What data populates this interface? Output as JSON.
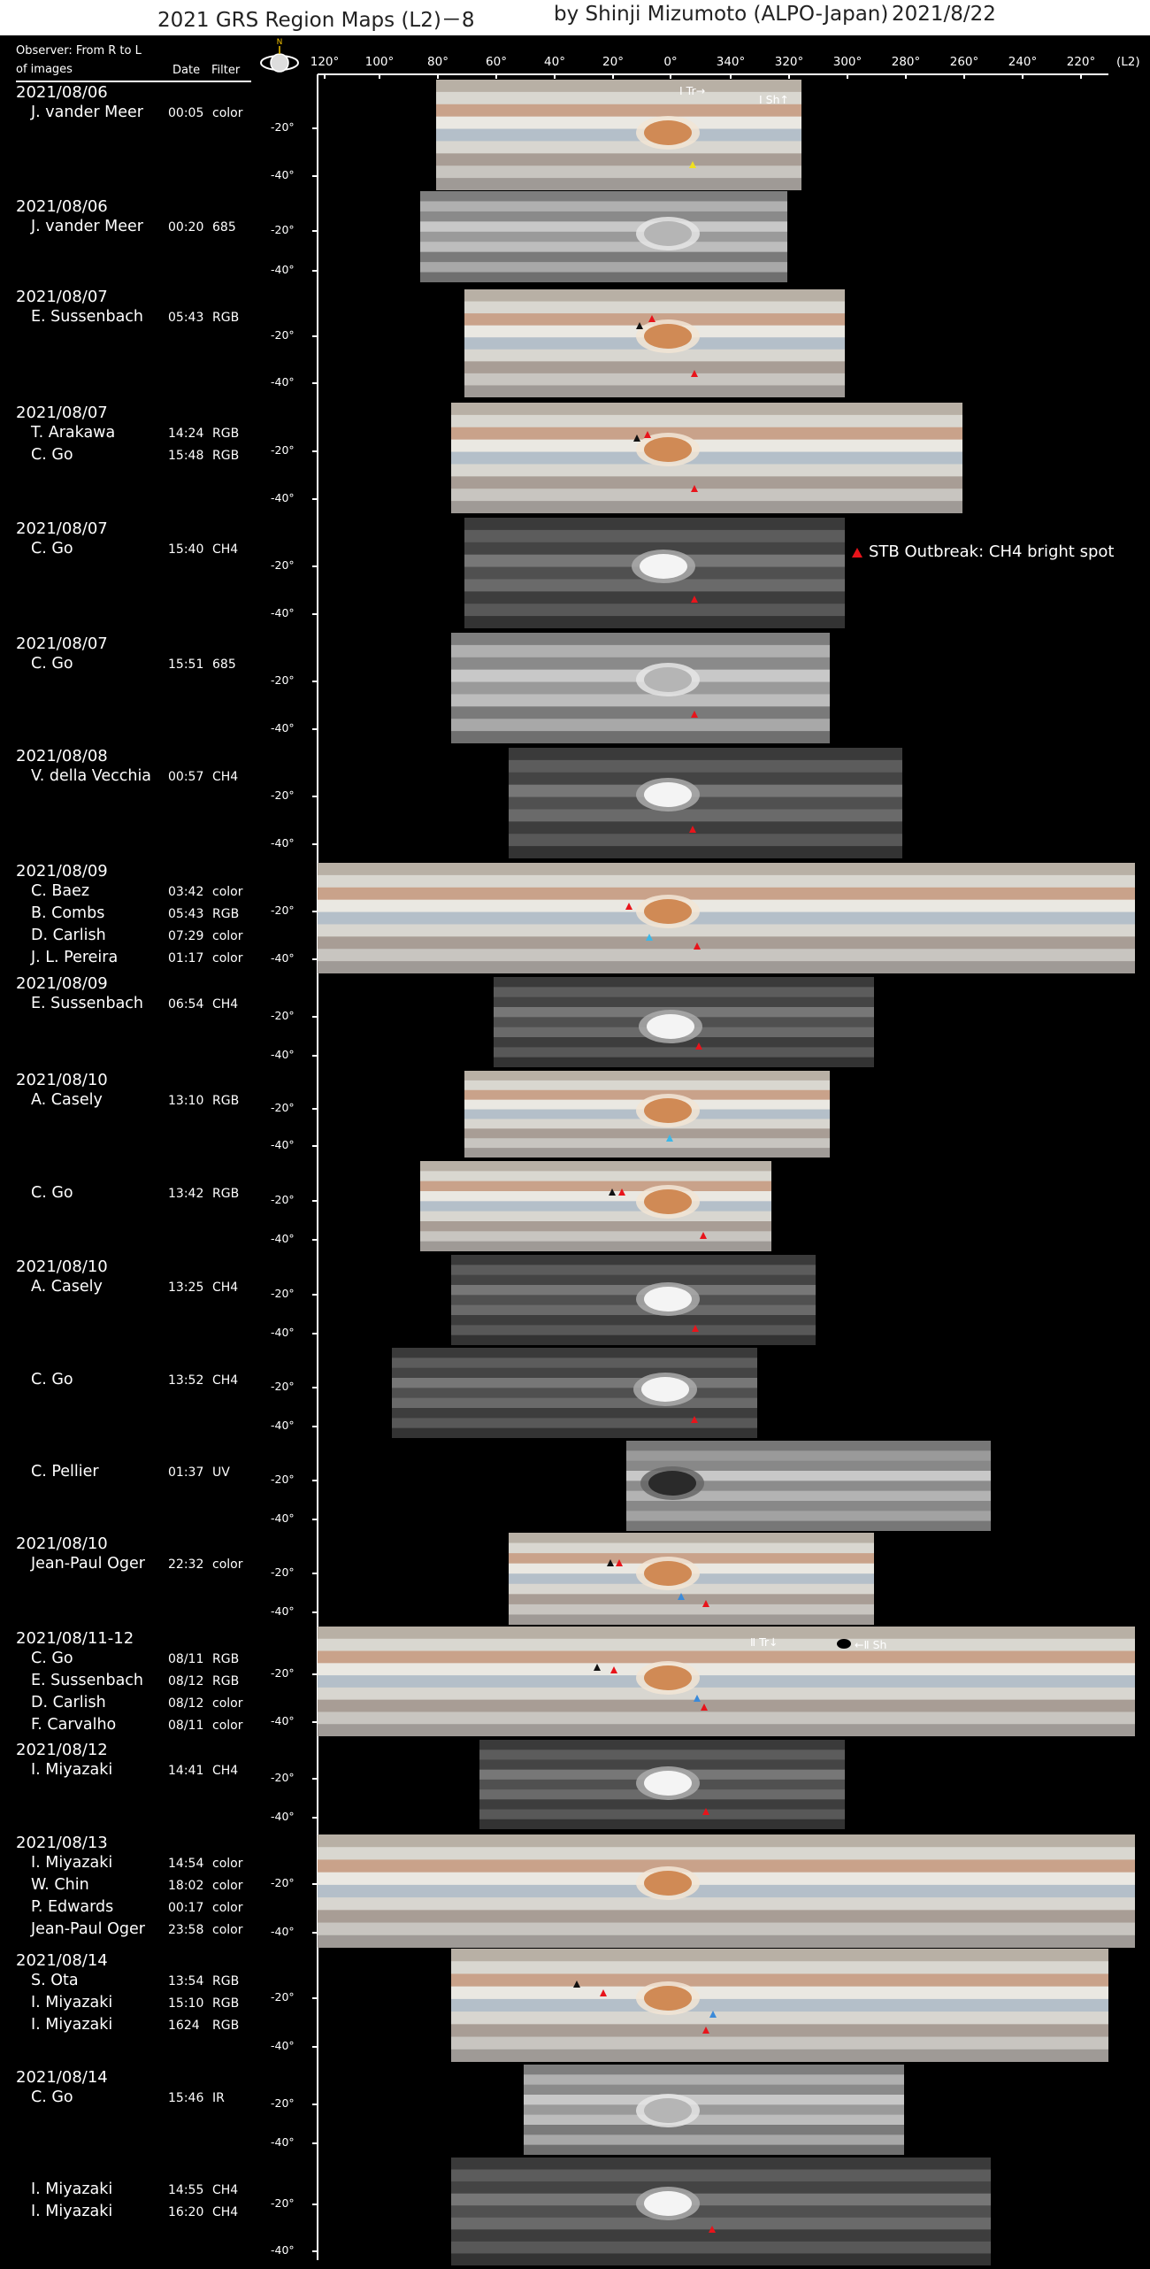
{
  "header": {
    "title": "2021 GRS Region Maps (L2)－8",
    "author": "by Shinji Mizumoto (ALPO-Japan)",
    "date": "2021/8/22"
  },
  "columns": {
    "observer_line1": "Observer: From R to L",
    "observer_line2": "of images",
    "date": "Date",
    "filter": "Filter"
  },
  "compass": {
    "north": "N"
  },
  "longitude_axis": {
    "labels": [
      "120°",
      "100°",
      "80°",
      "60°",
      "40°",
      "20°",
      "0°",
      "340°",
      "320°",
      "300°",
      "280°",
      "260°",
      "240°",
      "220°"
    ],
    "unit": "(L2)"
  },
  "latitude_labels": [
    "-20°",
    "-40°"
  ],
  "legend": {
    "marker_color": "#e8141b",
    "text": "STB Outbreak: CH4 bright spot"
  },
  "colors": {
    "red_marker": "#e8141b",
    "blue_marker": "#3b8ad9",
    "cyan_marker": "#3cb8e8",
    "yellow_marker": "#f0e020"
  },
  "panels": [
    {
      "date": "2021/08/06",
      "observers": [
        {
          "name": "J. vander Meer",
          "time": "00:05",
          "filter": "color"
        }
      ],
      "annotations": [
        "Ⅰ Tr→",
        "Ⅰ Sh↑"
      ]
    },
    {
      "date": "2021/08/06",
      "observers": [
        {
          "name": "J. vander Meer",
          "time": "00:20",
          "filter": "685"
        }
      ]
    },
    {
      "date": "2021/08/07",
      "observers": [
        {
          "name": "E. Sussenbach",
          "time": "05:43",
          "filter": "RGB"
        }
      ]
    },
    {
      "date": "2021/08/07",
      "observers": [
        {
          "name": "T. Arakawa",
          "time": "14:24",
          "filter": "RGB"
        },
        {
          "name": "C. Go",
          "time": "15:48",
          "filter": "RGB"
        }
      ]
    },
    {
      "date": "2021/08/07",
      "observers": [
        {
          "name": "C. Go",
          "time": "15:40",
          "filter": "CH4"
        }
      ]
    },
    {
      "date": "2021/08/07",
      "observers": [
        {
          "name": "C. Go",
          "time": "15:51",
          "filter": "685"
        }
      ]
    },
    {
      "date": "2021/08/08",
      "observers": [
        {
          "name": "V. della Vecchia",
          "time": "00:57",
          "filter": "CH4"
        }
      ]
    },
    {
      "date": "2021/08/09",
      "observers": [
        {
          "name": "C. Baez",
          "time": "03:42",
          "filter": "color"
        },
        {
          "name": "B. Combs",
          "time": "05:43",
          "filter": "RGB"
        },
        {
          "name": "D. Carlish",
          "time": "07:29",
          "filter": "color"
        },
        {
          "name": "J. L. Pereira",
          "time": "01:17",
          "filter": "color"
        }
      ]
    },
    {
      "date": "2021/08/09",
      "observers": [
        {
          "name": "E. Sussenbach",
          "time": "06:54",
          "filter": "CH4"
        }
      ]
    },
    {
      "date": "2021/08/10",
      "observers": [
        {
          "name": "A. Casely",
          "time": "13:10",
          "filter": "RGB"
        }
      ]
    },
    {
      "date": "",
      "observers": [
        {
          "name": "C. Go",
          "time": "13:42",
          "filter": "RGB"
        }
      ]
    },
    {
      "date": "2021/08/10",
      "observers": [
        {
          "name": "A. Casely",
          "time": "13:25",
          "filter": "CH4"
        }
      ]
    },
    {
      "date": "",
      "observers": [
        {
          "name": "C. Go",
          "time": "13:52",
          "filter": "CH4"
        }
      ]
    },
    {
      "date": "",
      "observers": [
        {
          "name": "C. Pellier",
          "time": "01:37",
          "filter": "UV"
        }
      ]
    },
    {
      "date": "2021/08/10",
      "observers": [
        {
          "name": "Jean-Paul Oger",
          "time": "22:32",
          "filter": "color"
        }
      ]
    },
    {
      "date": "2021/08/11-12",
      "observers": [
        {
          "name": "C. Go",
          "time": "08/11",
          "filter": "RGB"
        },
        {
          "name": "E. Sussenbach",
          "time": "08/12",
          "filter": "RGB"
        },
        {
          "name": "D. Carlish",
          "time": "08/12",
          "filter": "color"
        },
        {
          "name": "F. Carvalho",
          "time": "08/11",
          "filter": "color"
        }
      ],
      "annotations": [
        "Ⅱ Tr↓",
        "←Ⅱ Sh"
      ]
    },
    {
      "date": "2021/08/12",
      "observers": [
        {
          "name": "I. Miyazaki",
          "time": "14:41",
          "filter": "CH4"
        }
      ]
    },
    {
      "date": "2021/08/13",
      "observers": [
        {
          "name": "I. Miyazaki",
          "time": "14:54",
          "filter": "color"
        },
        {
          "name": "W. Chin",
          "time": "18:02",
          "filter": "color"
        },
        {
          "name": "P. Edwards",
          "time": "00:17",
          "filter": "color"
        },
        {
          "name": "Jean-Paul Oger",
          "time": "23:58",
          "filter": "color"
        }
      ]
    },
    {
      "date": "2021/08/14",
      "observers": [
        {
          "name": "S. Ota",
          "time": "13:54",
          "filter": "RGB"
        },
        {
          "name": "I. Miyazaki",
          "time": "15:10",
          "filter": "RGB"
        },
        {
          "name": "I. Miyazaki",
          "time": "1624",
          "filter": "RGB"
        }
      ]
    },
    {
      "date": "2021/08/14",
      "observers": [
        {
          "name": "C. Go",
          "time": "15:46",
          "filter": "IR"
        }
      ]
    },
    {
      "date": "",
      "observers": [
        {
          "name": "I. Miyazaki",
          "time": "14:55",
          "filter": "CH4"
        },
        {
          "name": "I. Miyazaki",
          "time": "16:20",
          "filter": "CH4"
        }
      ]
    }
  ]
}
